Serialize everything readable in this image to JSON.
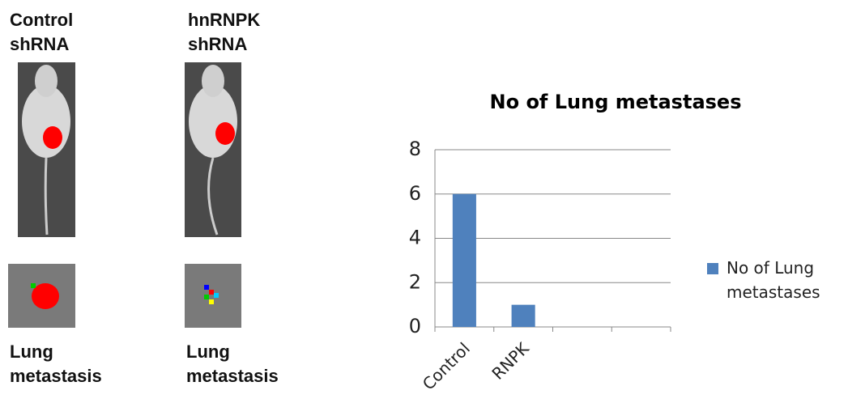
{
  "panels": {
    "mouse_labels": [
      "Control shRNA",
      "hnRNPK shRNA"
    ],
    "lung_labels": [
      "Lung metastasis",
      "Lung metastasis"
    ]
  },
  "chart_data": {
    "type": "bar",
    "title": "No of Lung metastases",
    "categories": [
      "Control",
      "RNPK",
      null,
      null
    ],
    "series": [
      {
        "name": "No of Lung metastases",
        "color": "#4f81bd",
        "values": [
          6,
          1,
          null,
          null
        ]
      }
    ],
    "ylim": [
      0,
      8
    ],
    "yticks": [
      0,
      2,
      4,
      6,
      8
    ],
    "grid": true,
    "legend": "right"
  }
}
